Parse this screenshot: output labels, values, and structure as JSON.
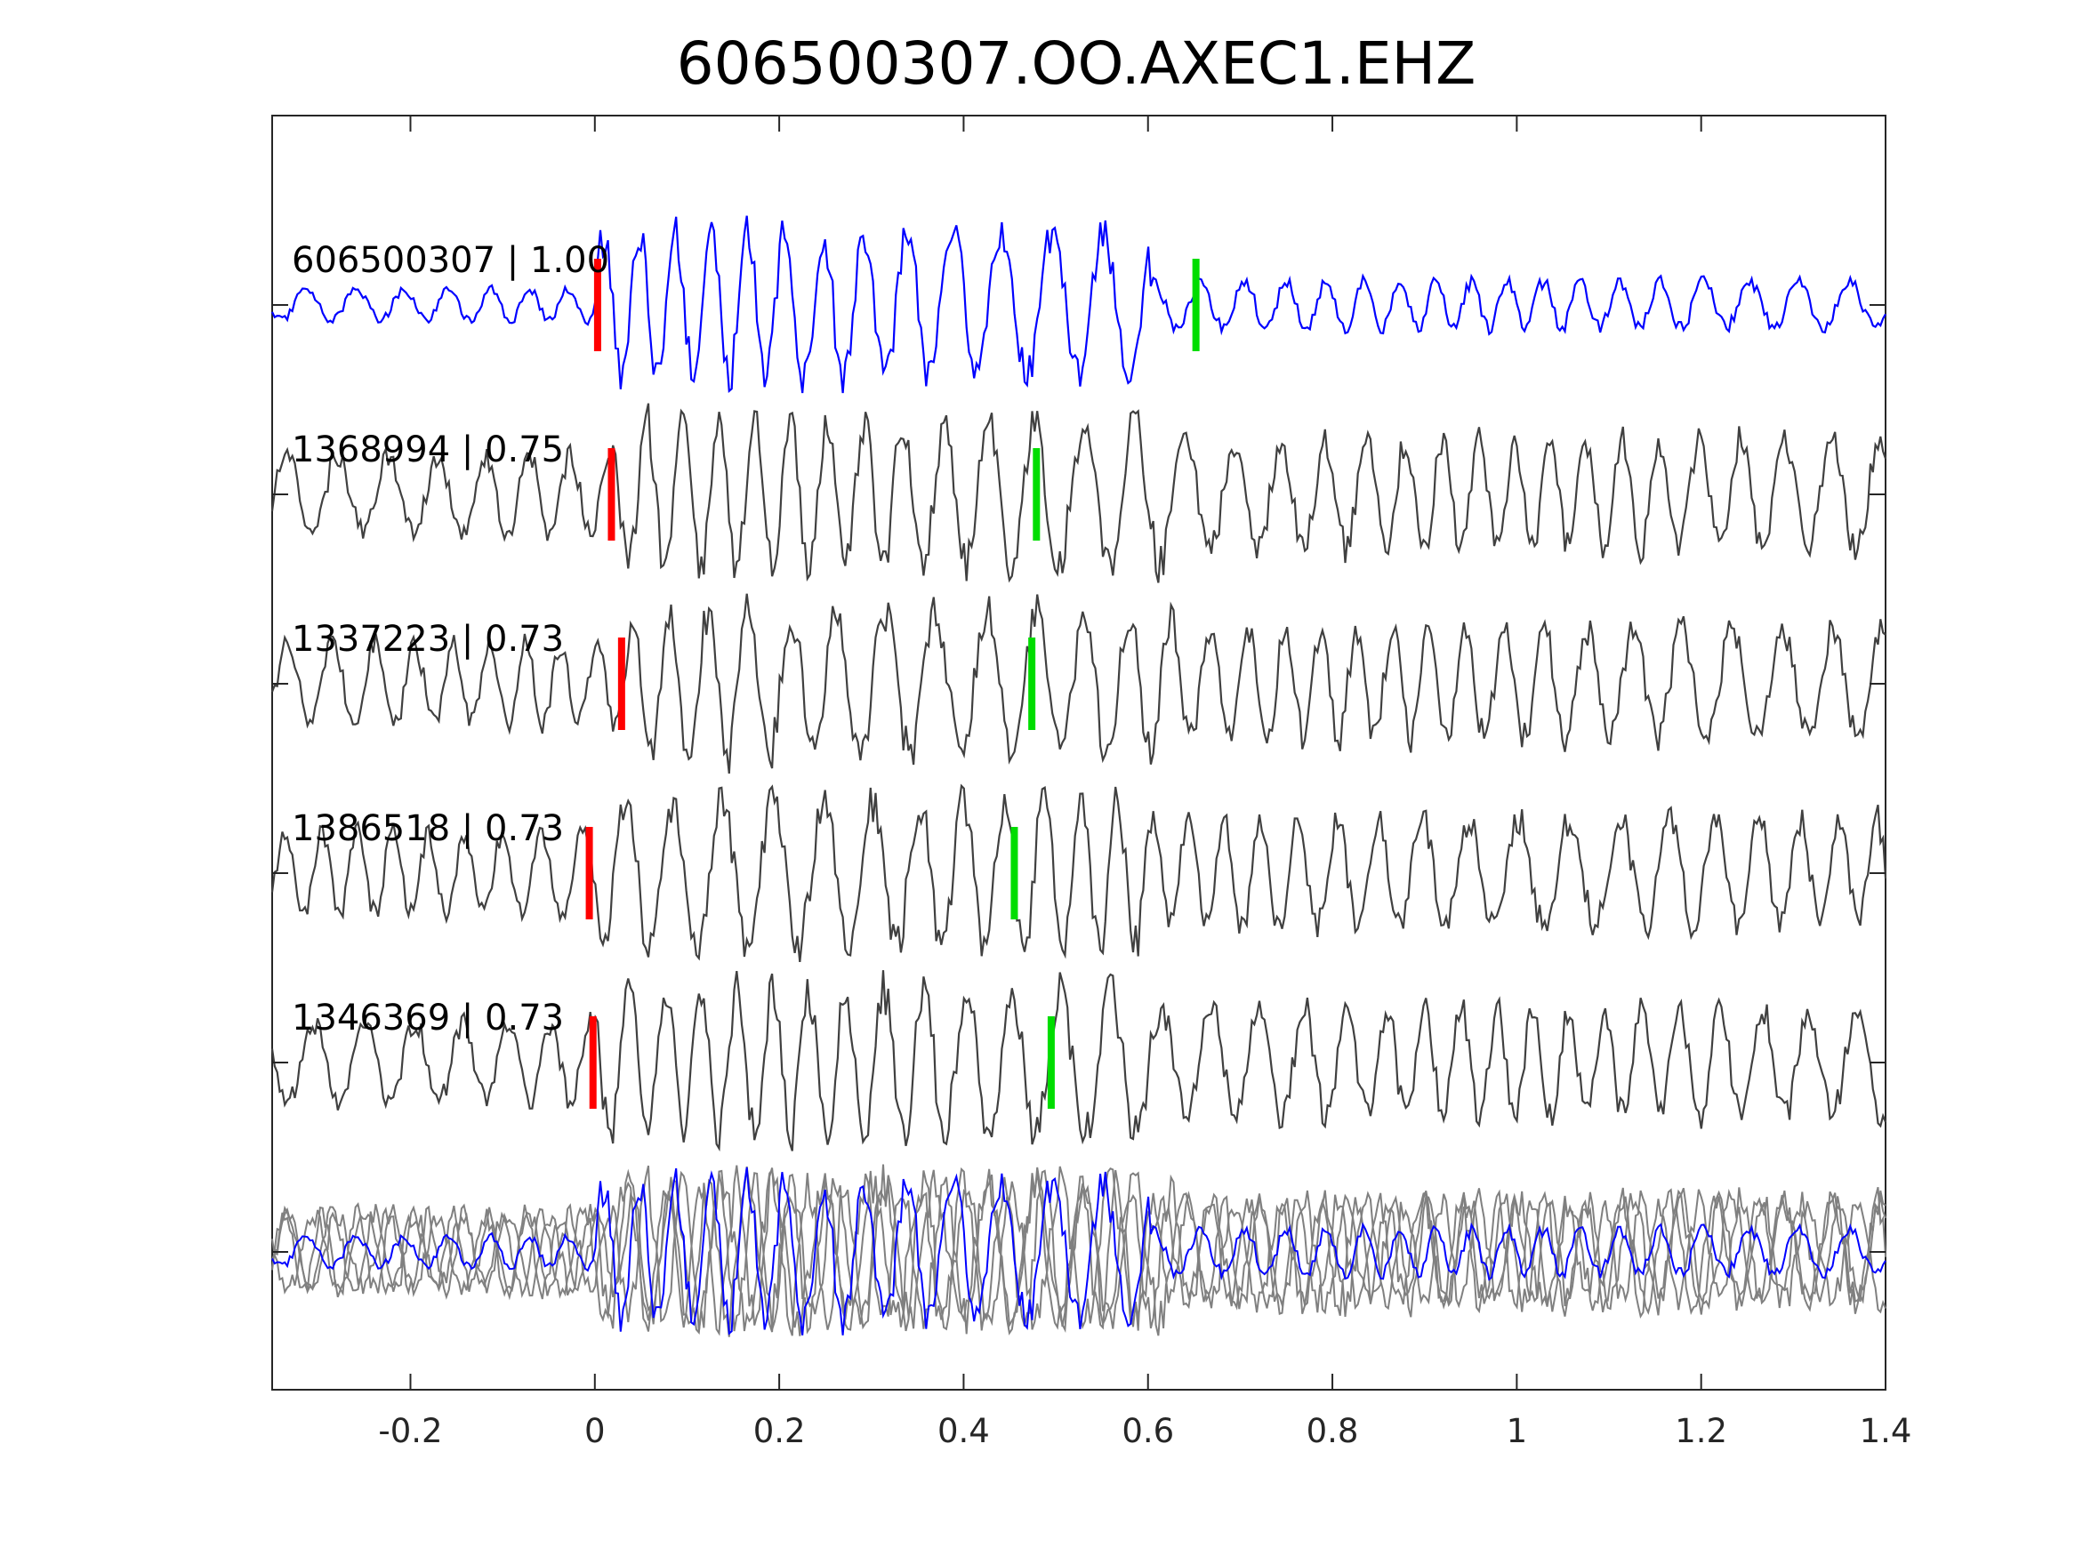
{
  "chart_data": {
    "type": "line",
    "title": "606500307.OO.AXEC1.EHZ",
    "xlabel": "",
    "ylabel": "",
    "xlim": [
      -0.35,
      1.4
    ],
    "x_ticks": [
      -0.2,
      0,
      0.2,
      0.4,
      0.6,
      0.8,
      1,
      1.2,
      1.4
    ],
    "x_tick_labels": [
      "-0.2",
      "0",
      "0.2",
      "0.4",
      "0.6",
      "0.8",
      "1",
      "1.2",
      "1.4"
    ],
    "grid": false,
    "colors": {
      "template": "#0000ff",
      "match": "#404040",
      "overlay_match": "#808080",
      "p_pick": "#ff0000",
      "s_pick": "#00dd00"
    },
    "series": [
      {
        "name": "606500307",
        "label": "606500307 | 1.00",
        "cc": 1.0,
        "p_pick": 0.003,
        "s_pick": 0.652,
        "color": "#0000ff",
        "seed": 11
      },
      {
        "name": "1368994",
        "label": "1368994 | 0.75",
        "cc": 0.75,
        "p_pick": 0.018,
        "s_pick": 0.479,
        "color": "#404040",
        "seed": 23
      },
      {
        "name": "1337223",
        "label": "1337223 | 0.73",
        "cc": 0.73,
        "p_pick": 0.029,
        "s_pick": 0.474,
        "color": "#404040",
        "seed": 37
      },
      {
        "name": "1386518",
        "label": "1386518 | 0.73",
        "cc": 0.73,
        "p_pick": -0.006,
        "s_pick": 0.455,
        "color": "#404040",
        "seed": 51
      },
      {
        "name": "1346369",
        "label": "1346369 | 0.73",
        "cc": 0.73,
        "p_pick": -0.002,
        "s_pick": 0.495,
        "color": "#404040",
        "seed": 67
      }
    ],
    "overlay": {
      "description_visible": false,
      "includes": [
        "606500307",
        "1368994",
        "1337223",
        "1386518",
        "1346369"
      ]
    }
  }
}
